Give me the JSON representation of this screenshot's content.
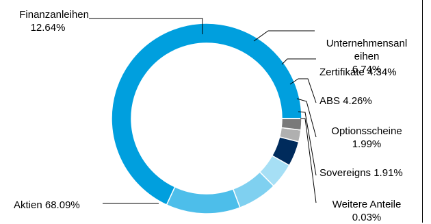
{
  "chart_data": {
    "type": "pie",
    "variant": "donut",
    "title": "",
    "categories": [
      "Aktien",
      "Finanzanleihen",
      "Unternehmensanleihen",
      "Zertifikate",
      "ABS",
      "Optionsscheine",
      "Sovereigns",
      "Weitere Anteile"
    ],
    "values": [
      68.09,
      12.64,
      6.74,
      4.34,
      4.26,
      1.99,
      1.91,
      0.03
    ],
    "labels": [
      {
        "name": "Aktien",
        "value": "68.09%"
      },
      {
        "name": "Finanzanleihen",
        "value": "12.64%"
      },
      {
        "name": "Unternehmensanl\neihen",
        "value": "6.74%"
      },
      {
        "name": "Zertifikate",
        "value": "4.34%"
      },
      {
        "name": "ABS",
        "value": "4.26%"
      },
      {
        "name": "Optionsscheine",
        "value": "1.99%"
      },
      {
        "name": "Sovereigns",
        "value": "1.91%"
      },
      {
        "name": "Weitere Anteile",
        "value": "0.03%"
      }
    ],
    "colors": [
      "#009FDE",
      "#4DBEEA",
      "#7FD0F0",
      "#A6DFF5",
      "#002B5C",
      "#B0B0B0",
      "#7A7A7A",
      "#555555"
    ],
    "start_angle_deg": 0,
    "direction": "counterclockwise",
    "legend": "none"
  }
}
